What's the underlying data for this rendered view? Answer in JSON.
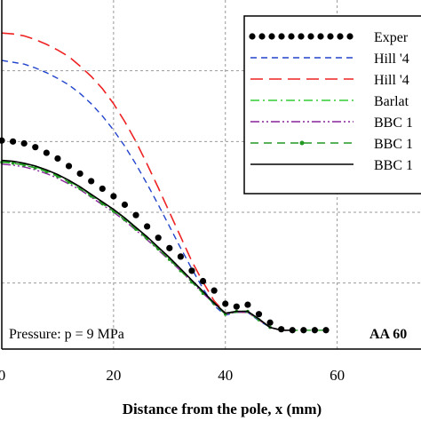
{
  "chart_data": {
    "type": "line",
    "xlabel": "Distance from the pole, x (mm)",
    "ylabel": "",
    "xlim": [
      0,
      75
    ],
    "ylim": [
      -2,
      35
    ],
    "x_ticks": [
      0,
      20,
      40,
      60
    ],
    "grid": true,
    "legend_position": "top-right",
    "annotations": [
      "Pressure: p = 9 MPa",
      "AA 60"
    ],
    "series": [
      {
        "name": "Experiment",
        "style": "dots",
        "color": "#000000",
        "x": [
          0,
          2,
          4,
          6,
          8,
          10,
          12,
          14,
          16,
          18,
          20,
          22,
          24,
          26,
          28,
          30,
          32,
          34,
          36,
          38,
          40,
          42,
          44,
          46,
          48,
          50,
          52,
          54,
          56,
          58
        ],
        "y": [
          20.1,
          20.0,
          19.8,
          19.4,
          18.8,
          18.2,
          17.4,
          16.6,
          15.8,
          15.0,
          14.2,
          13.3,
          12.2,
          11.0,
          9.8,
          8.7,
          7.8,
          6.3,
          5.2,
          4.2,
          2.8,
          2.5,
          2.7,
          1.7,
          0.8,
          0.1,
          0,
          0,
          0,
          0
        ]
      },
      {
        "name": "Hill '4",
        "style": "dashed",
        "color": "#2244cc",
        "x": [
          0,
          2,
          4,
          6,
          8,
          10,
          12,
          14,
          16,
          18,
          20,
          22,
          24,
          26,
          28,
          30,
          32,
          34,
          36,
          38,
          40,
          42,
          44,
          46,
          48,
          50,
          52
        ],
        "y": [
          28.6,
          28.4,
          28.2,
          27.8,
          27.3,
          26.7,
          26.0,
          25.1,
          24.0,
          22.7,
          21.2,
          19.5,
          17.6,
          15.5,
          13.3,
          11.0,
          8.7,
          6.5,
          4.4,
          2.6,
          1.6,
          1.9,
          1.9,
          1.0,
          0.3,
          0,
          0
        ]
      },
      {
        "name": "Hill '4",
        "style": "longdash",
        "color": "#ee2222",
        "x": [
          0,
          2,
          4,
          6,
          8,
          10,
          12,
          14,
          16,
          18,
          20,
          22,
          24,
          26,
          28,
          30,
          32,
          34,
          36,
          38,
          40,
          42,
          44,
          46,
          48,
          50,
          52
        ],
        "y": [
          31.5,
          31.4,
          31.2,
          30.8,
          30.3,
          29.7,
          29.0,
          28.0,
          26.9,
          25.6,
          24.0,
          22.1,
          20.0,
          17.6,
          15.1,
          12.5,
          9.9,
          7.3,
          5.1,
          3.1,
          1.8,
          1.9,
          1.9,
          1.1,
          0.3,
          0,
          0
        ]
      },
      {
        "name": "Barlat",
        "style": "dashdot",
        "color": "#33cc33",
        "x": [
          0,
          2,
          4,
          6,
          8,
          10,
          12,
          14,
          16,
          18,
          20,
          22,
          24,
          26,
          28,
          30,
          32,
          34,
          36,
          38,
          40,
          42,
          44,
          46,
          48,
          50,
          52
        ],
        "y": [
          17.9,
          17.8,
          17.6,
          17.3,
          16.9,
          16.4,
          15.8,
          15.1,
          14.3,
          13.5,
          12.7,
          11.8,
          10.8,
          9.8,
          8.7,
          7.6,
          6.4,
          5.2,
          4.0,
          2.9,
          1.8,
          1.9,
          1.9,
          1.1,
          0.3,
          0,
          0
        ]
      },
      {
        "name": "BBC 1",
        "style": "dashdotdot",
        "color": "#882299",
        "x": [
          0,
          2,
          4,
          6,
          8,
          10,
          12,
          14,
          16,
          18,
          20,
          22,
          24,
          26,
          28,
          30,
          32,
          34,
          36,
          38,
          40,
          42,
          44,
          46,
          48,
          50,
          52
        ],
        "y": [
          17.6,
          17.5,
          17.3,
          17.0,
          16.6,
          16.1,
          15.5,
          14.9,
          14.1,
          13.3,
          12.5,
          11.6,
          10.6,
          9.6,
          8.5,
          7.4,
          6.3,
          5.1,
          3.9,
          2.8,
          1.7,
          1.9,
          1.9,
          1.1,
          0.3,
          0,
          0
        ]
      },
      {
        "name": "BBC 1",
        "style": "dash-star",
        "color": "#229922",
        "x": [
          0,
          2,
          4,
          6,
          8,
          10,
          12,
          14,
          16,
          18,
          20,
          22,
          24,
          26,
          28,
          30,
          32,
          34,
          36,
          38,
          40,
          42,
          44,
          46,
          48,
          50,
          52,
          54,
          56,
          58
        ],
        "y": [
          17.8,
          17.7,
          17.5,
          17.2,
          16.8,
          16.3,
          15.7,
          15.0,
          14.2,
          13.4,
          12.6,
          11.7,
          10.7,
          9.7,
          8.6,
          7.5,
          6.3,
          5.1,
          3.9,
          2.8,
          1.7,
          2.0,
          2.0,
          1.1,
          0.3,
          0,
          0,
          0,
          0,
          0
        ]
      },
      {
        "name": "BBC 1",
        "style": "solid",
        "color": "#000000",
        "x": [
          0,
          2,
          4,
          6,
          8,
          10,
          12,
          14,
          16,
          18,
          20,
          22,
          24,
          26,
          28,
          30,
          32,
          34,
          36,
          38,
          40,
          42,
          44,
          46,
          48,
          50,
          52
        ],
        "y": [
          18.0,
          17.9,
          17.7,
          17.4,
          17.0,
          16.5,
          15.9,
          15.2,
          14.4,
          13.6,
          12.8,
          11.9,
          10.9,
          9.9,
          8.8,
          7.7,
          6.5,
          5.3,
          4.1,
          2.9,
          1.8,
          2.0,
          2.0,
          1.2,
          0.3,
          0,
          0
        ]
      }
    ]
  }
}
